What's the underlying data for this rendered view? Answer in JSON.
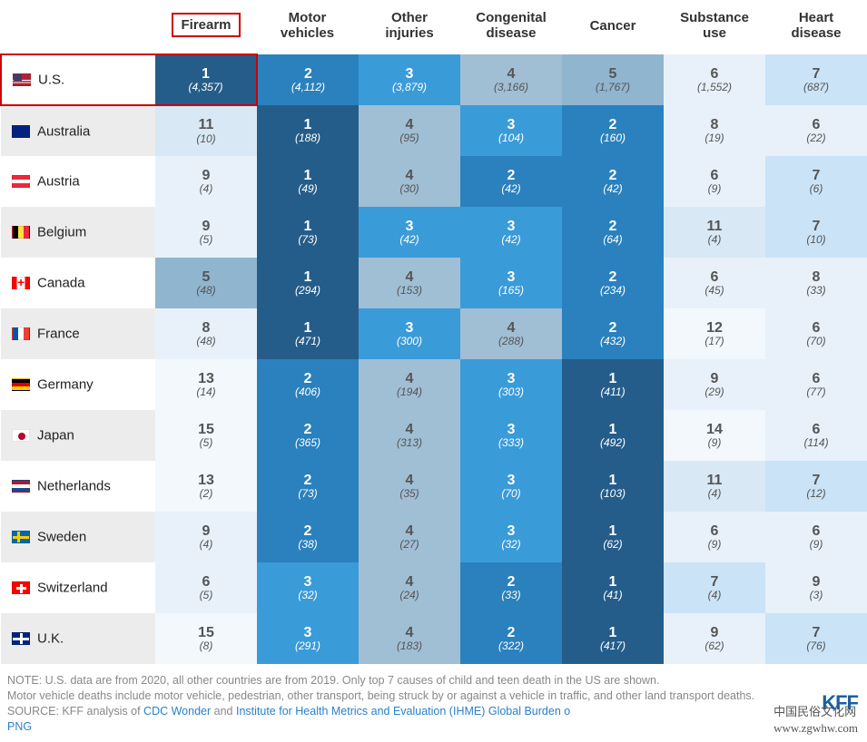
{
  "headers": [
    "Firearm",
    "Motor\nvehicles",
    "Other\ninjuries",
    "Congenital\ndisease",
    "Cancer",
    "Substance\nuse",
    "Heart\ndisease"
  ],
  "highlight_header_index": 0,
  "rank_colors": {
    "1": {
      "bg": "#255d8a",
      "fg": "#ffffff"
    },
    "2": {
      "bg": "#2a81bd",
      "fg": "#ffffff"
    },
    "3": {
      "bg": "#3a9bd9",
      "fg": "#ffffff"
    },
    "4": {
      "bg": "#a0bed4",
      "fg": "#555555"
    },
    "5": {
      "bg": "#8fb5cf",
      "fg": "#555555"
    },
    "6": {
      "bg": "#e8f1fa",
      "fg": "#555555"
    },
    "7": {
      "bg": "#cae3f7",
      "fg": "#555555"
    },
    "8": {
      "bg": "#e8f1fa",
      "fg": "#555555"
    },
    "9": {
      "bg": "#e8f1fa",
      "fg": "#555555"
    },
    "11": {
      "bg": "#d8e8f5",
      "fg": "#555555"
    },
    "12": {
      "bg": "#f2f8fc",
      "fg": "#555555"
    },
    "13": {
      "bg": "#f2f8fc",
      "fg": "#555555"
    },
    "14": {
      "bg": "#f2f8fc",
      "fg": "#555555"
    },
    "15": {
      "bg": "#f2f8fc",
      "fg": "#555555"
    }
  },
  "countries": [
    {
      "name": "U.S.",
      "flag": "us",
      "highlight": true,
      "cells": [
        {
          "rank": 1,
          "count": "4,357"
        },
        {
          "rank": 2,
          "count": "4,112"
        },
        {
          "rank": 3,
          "count": "3,879"
        },
        {
          "rank": 4,
          "count": "3,166"
        },
        {
          "rank": 5,
          "count": "1,767"
        },
        {
          "rank": 6,
          "count": "1,552"
        },
        {
          "rank": 7,
          "count": "687"
        }
      ]
    },
    {
      "name": "Australia",
      "flag": "au",
      "cells": [
        {
          "rank": 11,
          "count": "10"
        },
        {
          "rank": 1,
          "count": "188"
        },
        {
          "rank": 4,
          "count": "95"
        },
        {
          "rank": 3,
          "count": "104"
        },
        {
          "rank": 2,
          "count": "160"
        },
        {
          "rank": 8,
          "count": "19"
        },
        {
          "rank": 6,
          "count": "22"
        }
      ]
    },
    {
      "name": "Austria",
      "flag": "at",
      "cells": [
        {
          "rank": 9,
          "count": "4"
        },
        {
          "rank": 1,
          "count": "49"
        },
        {
          "rank": 4,
          "count": "30"
        },
        {
          "rank": 2,
          "count": "42"
        },
        {
          "rank": 2,
          "count": "42"
        },
        {
          "rank": 6,
          "count": "9"
        },
        {
          "rank": 7,
          "count": "6"
        }
      ]
    },
    {
      "name": "Belgium",
      "flag": "be",
      "cells": [
        {
          "rank": 9,
          "count": "5"
        },
        {
          "rank": 1,
          "count": "73"
        },
        {
          "rank": 3,
          "count": "42"
        },
        {
          "rank": 3,
          "count": "42"
        },
        {
          "rank": 2,
          "count": "64"
        },
        {
          "rank": 11,
          "count": "4"
        },
        {
          "rank": 7,
          "count": "10"
        }
      ]
    },
    {
      "name": "Canada",
      "flag": "ca",
      "cells": [
        {
          "rank": 5,
          "count": "48"
        },
        {
          "rank": 1,
          "count": "294"
        },
        {
          "rank": 4,
          "count": "153"
        },
        {
          "rank": 3,
          "count": "165"
        },
        {
          "rank": 2,
          "count": "234"
        },
        {
          "rank": 6,
          "count": "45"
        },
        {
          "rank": 8,
          "count": "33"
        }
      ]
    },
    {
      "name": "France",
      "flag": "fr",
      "cells": [
        {
          "rank": 8,
          "count": "48"
        },
        {
          "rank": 1,
          "count": "471"
        },
        {
          "rank": 3,
          "count": "300"
        },
        {
          "rank": 4,
          "count": "288"
        },
        {
          "rank": 2,
          "count": "432"
        },
        {
          "rank": 12,
          "count": "17"
        },
        {
          "rank": 6,
          "count": "70"
        }
      ]
    },
    {
      "name": "Germany",
      "flag": "de",
      "cells": [
        {
          "rank": 13,
          "count": "14"
        },
        {
          "rank": 2,
          "count": "406"
        },
        {
          "rank": 4,
          "count": "194"
        },
        {
          "rank": 3,
          "count": "303"
        },
        {
          "rank": 1,
          "count": "411"
        },
        {
          "rank": 9,
          "count": "29"
        },
        {
          "rank": 6,
          "count": "77"
        }
      ]
    },
    {
      "name": "Japan",
      "flag": "jp",
      "cells": [
        {
          "rank": 15,
          "count": "5"
        },
        {
          "rank": 2,
          "count": "365"
        },
        {
          "rank": 4,
          "count": "313"
        },
        {
          "rank": 3,
          "count": "333"
        },
        {
          "rank": 1,
          "count": "492"
        },
        {
          "rank": 14,
          "count": "9"
        },
        {
          "rank": 6,
          "count": "114"
        }
      ]
    },
    {
      "name": "Netherlands",
      "flag": "nl",
      "cells": [
        {
          "rank": 13,
          "count": "2"
        },
        {
          "rank": 2,
          "count": "73"
        },
        {
          "rank": 4,
          "count": "35"
        },
        {
          "rank": 3,
          "count": "70"
        },
        {
          "rank": 1,
          "count": "103"
        },
        {
          "rank": 11,
          "count": "4"
        },
        {
          "rank": 7,
          "count": "12"
        }
      ]
    },
    {
      "name": "Sweden",
      "flag": "se",
      "cells": [
        {
          "rank": 9,
          "count": "4"
        },
        {
          "rank": 2,
          "count": "38"
        },
        {
          "rank": 4,
          "count": "27"
        },
        {
          "rank": 3,
          "count": "32"
        },
        {
          "rank": 1,
          "count": "62"
        },
        {
          "rank": 6,
          "count": "9"
        },
        {
          "rank": 6,
          "count": "9"
        }
      ]
    },
    {
      "name": "Switzerland",
      "flag": "ch",
      "cells": [
        {
          "rank": 6,
          "count": "5"
        },
        {
          "rank": 3,
          "count": "32"
        },
        {
          "rank": 4,
          "count": "24"
        },
        {
          "rank": 2,
          "count": "33"
        },
        {
          "rank": 1,
          "count": "41"
        },
        {
          "rank": 7,
          "count": "4"
        },
        {
          "rank": 9,
          "count": "3"
        }
      ]
    },
    {
      "name": "U.K.",
      "flag": "uk",
      "cells": [
        {
          "rank": 15,
          "count": "8"
        },
        {
          "rank": 3,
          "count": "291"
        },
        {
          "rank": 4,
          "count": "183"
        },
        {
          "rank": 2,
          "count": "322"
        },
        {
          "rank": 1,
          "count": "417"
        },
        {
          "rank": 9,
          "count": "62"
        },
        {
          "rank": 7,
          "count": "76"
        }
      ]
    }
  ],
  "footer": {
    "note1": "NOTE: U.S. data are from 2020, all other countries are from 2019. Only top 7 causes of child and teen death in the US are shown.",
    "note2": "Motor vehicle deaths include motor vehicle, pedestrian, other transport, being struck by or against a vehicle in traffic, and other land transport deaths.",
    "source_prefix": "SOURCE: KFF analysis of ",
    "link1": "CDC Wonder",
    "and": " and ",
    "link2": "Institute for Health Metrics and Evaluation (IHME) Global Burden o",
    "png": "PNG",
    "kff": "KFF",
    "wm1": "中国民俗文化网",
    "wm2": "www.zgwhw.com"
  }
}
